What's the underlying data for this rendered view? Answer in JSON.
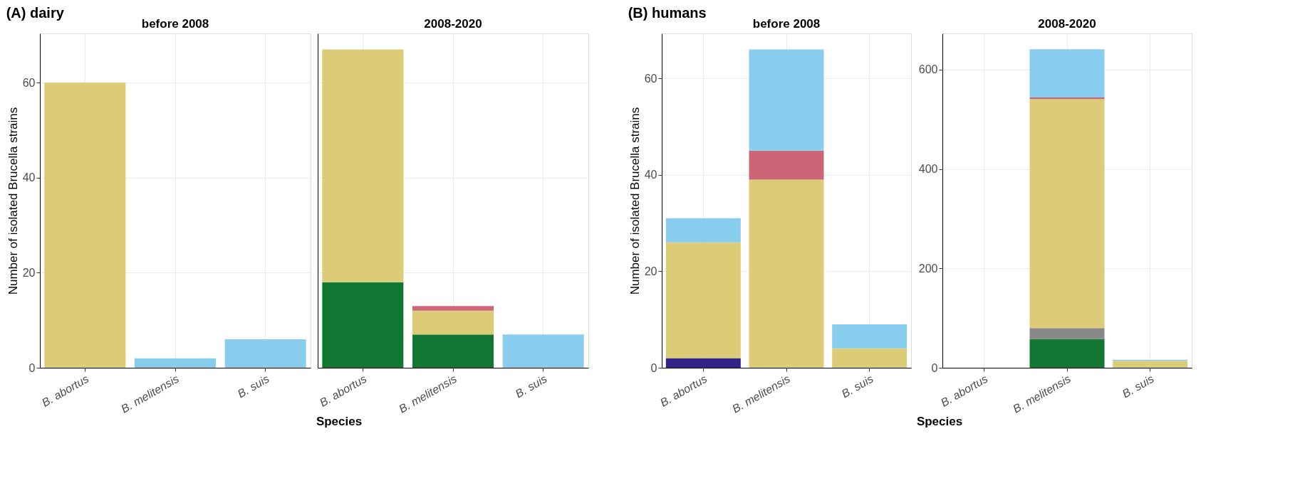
{
  "chart_data": [
    {
      "type": "bar",
      "stacked": true,
      "title": "(A) dairy",
      "subtitle": "before 2008",
      "xlabel": "Species",
      "ylabel": "Number of isolated Brucella strains",
      "categories": [
        "B. abortus",
        "B. melitensis",
        "B. suis"
      ],
      "ylim": [
        0,
        70.35
      ],
      "yticks": [
        0,
        20,
        40,
        60
      ],
      "grid": true,
      "legend": false,
      "series": [
        {
          "color": "#ddcc77",
          "values": [
            60,
            null,
            null
          ]
        },
        {
          "color": "#88ccee",
          "values": [
            null,
            2,
            6
          ]
        }
      ]
    },
    {
      "type": "bar",
      "stacked": true,
      "subtitle": "2008-2020",
      "categories": [
        "B. abortus",
        "B. melitensis",
        "B. suis"
      ],
      "ylim": [
        0,
        70.35
      ],
      "yticks": [
        0,
        20,
        40,
        60
      ],
      "tick_labels": "x",
      "grid": true,
      "legend": false,
      "series": [
        {
          "color": "#117733",
          "values": [
            18,
            7,
            null
          ]
        },
        {
          "color": "#ddcc77",
          "values": [
            49,
            5,
            null
          ]
        },
        {
          "color": "#cc6677",
          "values": [
            null,
            1,
            null
          ]
        },
        {
          "color": "#88ccee",
          "values": [
            null,
            null,
            7
          ]
        }
      ]
    },
    {
      "type": "bar",
      "stacked": true,
      "title": "(B) humans",
      "subtitle": "before 2008",
      "xlabel": "Species",
      "ylabel": "Number of isolated Brucella strains",
      "categories": [
        "B. abortus",
        "B. melitensis",
        "B. suis"
      ],
      "ylim": [
        0,
        69.3
      ],
      "yticks": [
        0,
        20,
        40,
        60
      ],
      "grid": true,
      "legend": false,
      "series": [
        {
          "color": "#332288",
          "values": [
            2,
            null,
            null
          ]
        },
        {
          "color": "#ddcc77",
          "values": [
            24,
            39,
            4
          ]
        },
        {
          "color": "#cc6677",
          "values": [
            null,
            6,
            null
          ]
        },
        {
          "color": "#88ccee",
          "values": [
            5,
            21,
            5
          ]
        }
      ]
    },
    {
      "type": "bar",
      "stacked": true,
      "subtitle": "2008-2020",
      "categories": [
        "B. abortus",
        "B. melitensis",
        "B. suis"
      ],
      "ylim": [
        0,
        673
      ],
      "yticks": [
        0,
        200,
        400,
        600
      ],
      "grid": true,
      "legend": false,
      "series": [
        {
          "color": "#117733",
          "values": [
            null,
            58,
            null
          ]
        },
        {
          "color": "#888888",
          "values": [
            null,
            22,
            null
          ]
        },
        {
          "color": "#ddcc77",
          "values": [
            null,
            461,
            14
          ]
        },
        {
          "color": "#cc6677",
          "values": [
            null,
            3,
            null
          ]
        },
        {
          "color": "#88ccee",
          "values": [
            null,
            97,
            2
          ]
        }
      ]
    }
  ]
}
